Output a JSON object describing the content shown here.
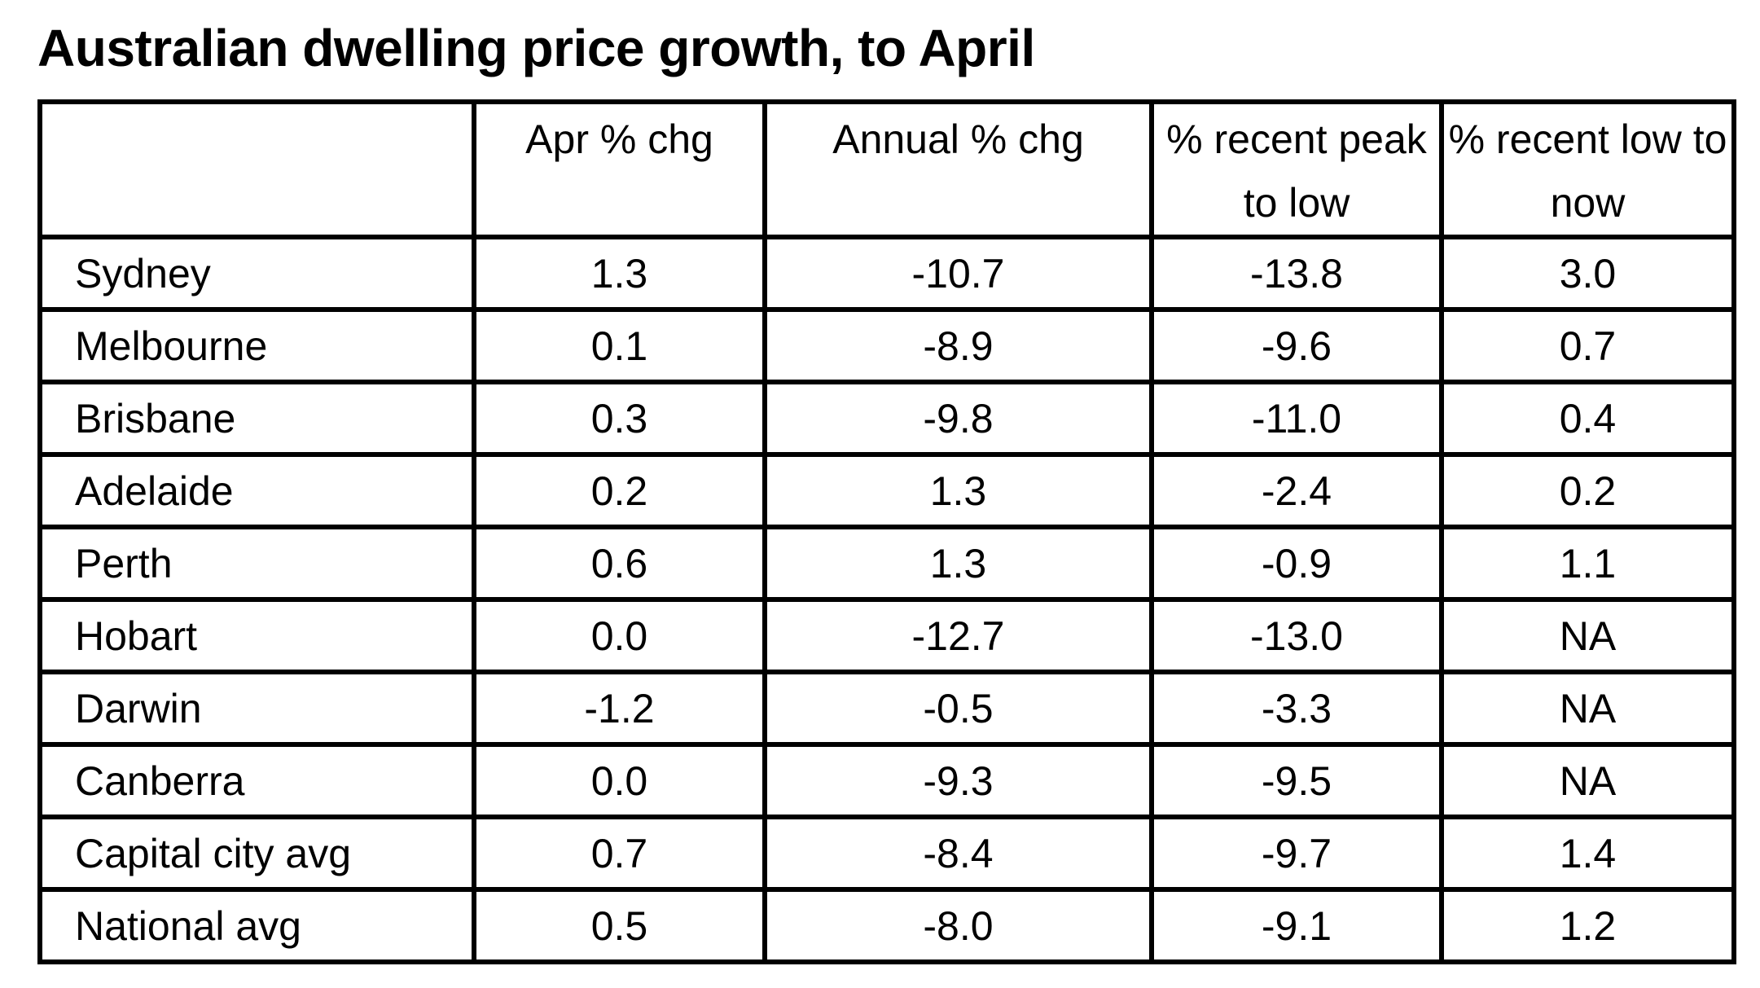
{
  "title": "Australian dwelling price growth, to April",
  "columns": [
    "",
    "Apr % chg",
    "Annual % chg",
    "% recent peak to low",
    "% recent low to now"
  ],
  "rows": [
    [
      "Sydney",
      "1.3",
      "-10.7",
      "-13.8",
      "3.0"
    ],
    [
      "Melbourne",
      "0.1",
      "-8.9",
      "-9.6",
      "0.7"
    ],
    [
      "Brisbane",
      "0.3",
      "-9.8",
      "-11.0",
      "0.4"
    ],
    [
      "Adelaide",
      "0.2",
      "1.3",
      "-2.4",
      "0.2"
    ],
    [
      "Perth",
      "0.6",
      "1.3",
      "-0.9",
      "1.1"
    ],
    [
      "Hobart",
      "0.0",
      "-12.7",
      "-13.0",
      "NA"
    ],
    [
      "Darwin",
      "-1.2",
      "-0.5",
      "-3.3",
      "NA"
    ],
    [
      "Canberra",
      "0.0",
      "-9.3",
      "-9.5",
      "NA"
    ],
    [
      "Capital city avg",
      "0.7",
      "-8.4",
      "-9.7",
      "1.4"
    ],
    [
      "National avg",
      "0.5",
      "-8.0",
      "-9.1",
      "1.2"
    ]
  ]
}
